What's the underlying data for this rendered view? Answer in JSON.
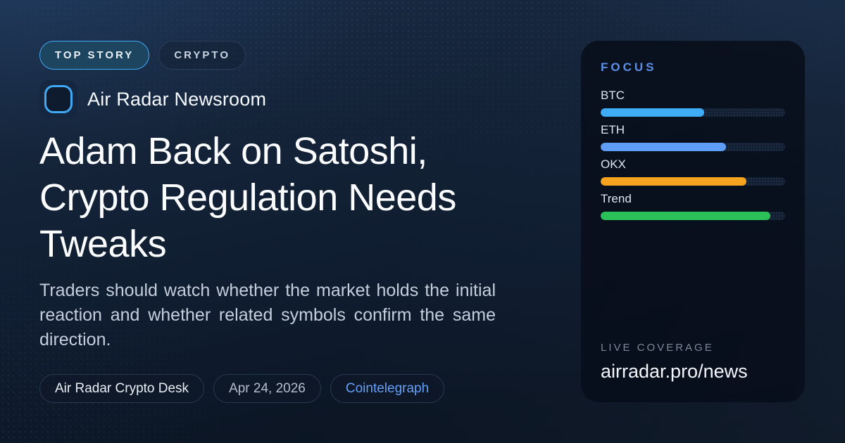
{
  "badges": {
    "top_story": "TOP STORY",
    "category": "CRYPTO"
  },
  "brand": {
    "name": "Air Radar Newsroom"
  },
  "headline": "Adam Back on Satoshi, Crypto Regulation Needs Tweaks",
  "subtitle": "Traders should watch whether the market holds the initial reaction and whether related symbols confirm the same direction.",
  "meta": {
    "author": "Air Radar Crypto Desk",
    "date": "Apr 24, 2026",
    "source": "Cointelegraph"
  },
  "focus_panel": {
    "title": "FOCUS",
    "bars": [
      {
        "label": "BTC",
        "value_pct": 56,
        "width": "56%",
        "color": "#3fadf6"
      },
      {
        "label": "ETH",
        "value_pct": 68,
        "width": "68%",
        "color": "#5f9ef6"
      },
      {
        "label": "OKX",
        "value_pct": 79,
        "width": "79%",
        "color": "#f6a41f"
      },
      {
        "label": "Trend",
        "value_pct": 92,
        "width": "92%",
        "color": "#2bc158"
      }
    ],
    "footer_label": "LIVE COVERAGE",
    "footer_url": "airradar.pro/news"
  },
  "colors": {
    "accent_blue": "#3fa9f4",
    "focus_title_blue": "#5d8fe9",
    "link_blue": "#64a0f7",
    "background_top": "#1a2c46",
    "background_bottom": "#0a1320",
    "card_background": "#081120"
  }
}
